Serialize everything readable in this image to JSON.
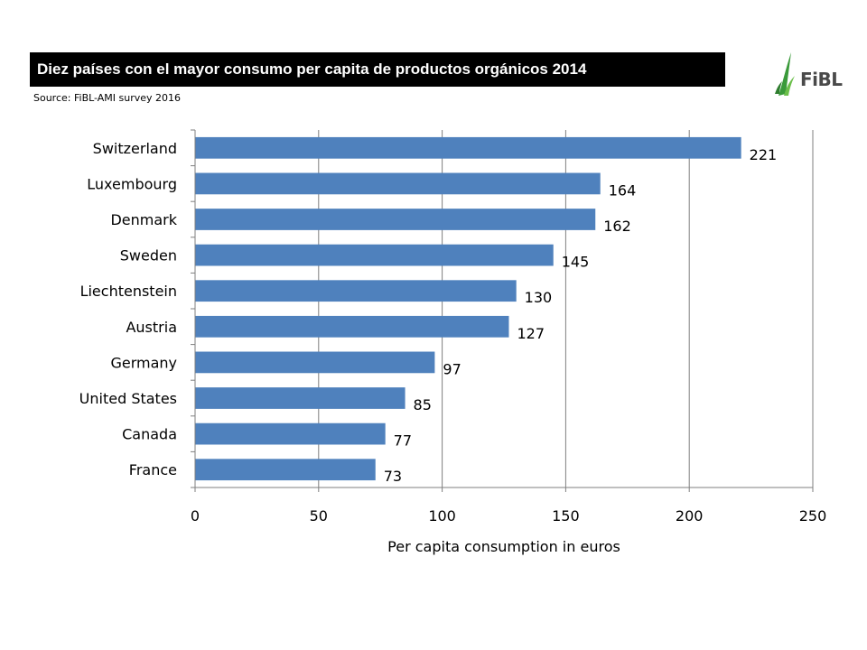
{
  "header": {
    "title": "Diez países con el mayor consumo per capita de productos orgánicos 2014",
    "source": "Source: FiBL-AMI survey 2016",
    "logo_text": "FiBL",
    "logo_icon": "fibl-leaf-icon"
  },
  "colors": {
    "bar": "#4f81bd",
    "title_bg": "#000000",
    "title_fg": "#ffffff",
    "grid": "#7f7f7f",
    "logo_green": "#3a9a3a"
  },
  "chart_data": {
    "type": "bar",
    "orientation": "horizontal",
    "categories": [
      "Switzerland",
      "Luxembourg",
      "Denmark",
      "Sweden",
      "Liechtenstein",
      "Austria",
      "Germany",
      "United States",
      "Canada",
      "France"
    ],
    "values": [
      221,
      164,
      162,
      145,
      130,
      127,
      97,
      85,
      77,
      73
    ],
    "value_labels": [
      "221",
      "164",
      "162",
      "145",
      "130",
      "127",
      "97",
      "85",
      "77",
      "73"
    ],
    "xlabel": "Per capita consumption in euros",
    "ylabel": "",
    "xlim": [
      0,
      250
    ],
    "xticks": [
      0,
      50,
      100,
      150,
      200,
      250
    ],
    "xtick_labels": [
      "0",
      "50",
      "100",
      "150",
      "200",
      "250"
    ],
    "grid": "vertical"
  }
}
